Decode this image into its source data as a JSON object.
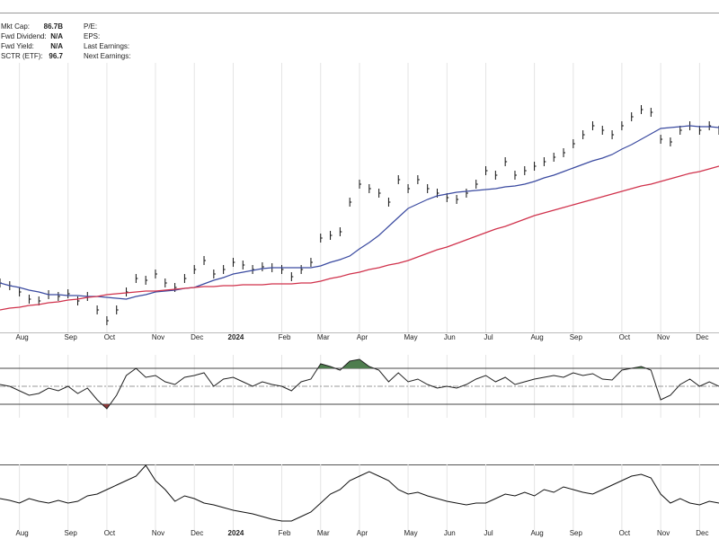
{
  "header": {
    "left": [
      {
        "label": "Mkt Cap:",
        "value": "86.7B"
      },
      {
        "label": "Fwd Dividend:",
        "value": "N/A"
      },
      {
        "label": "Fwd Yield:",
        "value": "N/A"
      },
      {
        "label": "SCTR (ETF):",
        "value": "96.7"
      }
    ],
    "right": [
      "P/E:",
      "EPS:",
      "Last Earnings:",
      "Next Earnings:"
    ]
  },
  "chart_data": [
    {
      "type": "line",
      "categories": [
        null,
        null,
        "Aug",
        null,
        null,
        null,
        null,
        "Sep",
        null,
        null,
        null,
        "Oct",
        null,
        null,
        null,
        null,
        "Nov",
        null,
        null,
        null,
        "Dec",
        null,
        null,
        null,
        "2024",
        null,
        null,
        null,
        null,
        "Feb",
        null,
        null,
        null,
        "Mar",
        null,
        null,
        null,
        "Apr",
        null,
        null,
        null,
        null,
        "May",
        null,
        null,
        null,
        "Jun",
        null,
        null,
        null,
        "Jul",
        null,
        null,
        null,
        null,
        "Aug",
        null,
        null,
        null,
        "Sep",
        null,
        null,
        null,
        null,
        "Oct",
        null,
        null,
        null,
        "Nov",
        null,
        null,
        null,
        "Dec",
        null,
        null
      ],
      "ylim": [
        0,
        300
      ],
      "series": [
        {
          "style": "bars",
          "color": "#111111",
          "values": [
            55,
            52,
            45,
            37,
            35,
            42,
            40,
            43,
            35,
            40,
            25,
            13,
            25,
            45,
            60,
            58,
            65,
            55,
            50,
            60,
            70,
            80,
            65,
            70,
            78,
            75,
            70,
            73,
            72,
            70,
            62,
            70,
            78,
            105,
            108,
            112,
            145,
            165,
            160,
            155,
            145,
            170,
            160,
            170,
            160,
            155,
            150,
            148,
            155,
            165,
            180,
            175,
            190,
            175,
            180,
            185,
            190,
            195,
            200,
            210,
            220,
            230,
            225,
            220,
            230,
            240,
            248,
            245,
            215,
            212,
            225,
            230,
            225,
            230,
            225
          ]
        },
        {
          "style": "line",
          "color": "#3a4aa0",
          "values": [
            55,
            52,
            50,
            47,
            45,
            42,
            42,
            41,
            41,
            40,
            40,
            39,
            38,
            37,
            40,
            42,
            45,
            46,
            47,
            49,
            50,
            54,
            58,
            61,
            65,
            67,
            69,
            71,
            72,
            72,
            72,
            72,
            72,
            74,
            78,
            81,
            85,
            93,
            100,
            108,
            118,
            128,
            138,
            143,
            148,
            152,
            154,
            156,
            157,
            158,
            159,
            160,
            162,
            163,
            165,
            168,
            172,
            175,
            179,
            183,
            187,
            191,
            194,
            198,
            204,
            209,
            215,
            221,
            227,
            228,
            229,
            230,
            229,
            229,
            228
          ]
        },
        {
          "style": "line",
          "color": "#d0314b",
          "values": [
            25,
            27,
            28,
            30,
            31,
            33,
            34,
            36,
            37,
            39,
            40,
            42,
            43,
            44,
            45,
            46,
            46,
            47,
            48,
            49,
            50,
            51,
            51,
            52,
            52,
            53,
            53,
            53,
            54,
            54,
            54,
            55,
            55,
            57,
            60,
            62,
            65,
            67,
            70,
            72,
            75,
            77,
            80,
            84,
            88,
            92,
            95,
            99,
            103,
            107,
            111,
            115,
            118,
            122,
            126,
            130,
            133,
            136,
            139,
            142,
            145,
            148,
            151,
            154,
            157,
            160,
            163,
            165,
            168,
            171,
            174,
            177,
            179,
            182,
            185
          ]
        }
      ]
    },
    {
      "type": "line",
      "ylim": [
        15,
        85
      ],
      "reference_lines": [
        30,
        50,
        70
      ],
      "color": "#222222",
      "above_color": "#4e7d4e",
      "below_color": "#8e3b3b",
      "values": [
        52,
        50,
        45,
        40,
        42,
        48,
        45,
        50,
        42,
        48,
        35,
        25,
        40,
        62,
        70,
        60,
        62,
        55,
        52,
        60,
        62,
        65,
        50,
        58,
        60,
        55,
        50,
        55,
        52,
        50,
        45,
        55,
        58,
        75,
        72,
        68,
        78,
        80,
        72,
        68,
        55,
        65,
        55,
        58,
        52,
        48,
        50,
        48,
        52,
        58,
        62,
        55,
        60,
        52,
        55,
        58,
        60,
        62,
        60,
        65,
        62,
        64,
        58,
        57,
        68,
        70,
        72,
        68,
        35,
        40,
        52,
        58,
        50,
        55,
        50
      ]
    },
    {
      "type": "line",
      "ylim": [
        0,
        80
      ],
      "color": "#111111",
      "values": [
        35,
        33,
        30,
        35,
        32,
        30,
        33,
        30,
        32,
        38,
        40,
        45,
        50,
        55,
        60,
        72,
        55,
        45,
        32,
        38,
        35,
        30,
        28,
        25,
        22,
        20,
        18,
        15,
        12,
        10,
        10,
        15,
        20,
        30,
        40,
        45,
        55,
        60,
        65,
        60,
        55,
        45,
        40,
        42,
        38,
        35,
        32,
        30,
        28,
        30,
        30,
        35,
        40,
        38,
        42,
        38,
        45,
        42,
        48,
        45,
        42,
        40,
        45,
        50,
        55,
        60,
        62,
        58,
        40,
        30,
        35,
        30,
        28,
        32,
        30
      ]
    }
  ]
}
